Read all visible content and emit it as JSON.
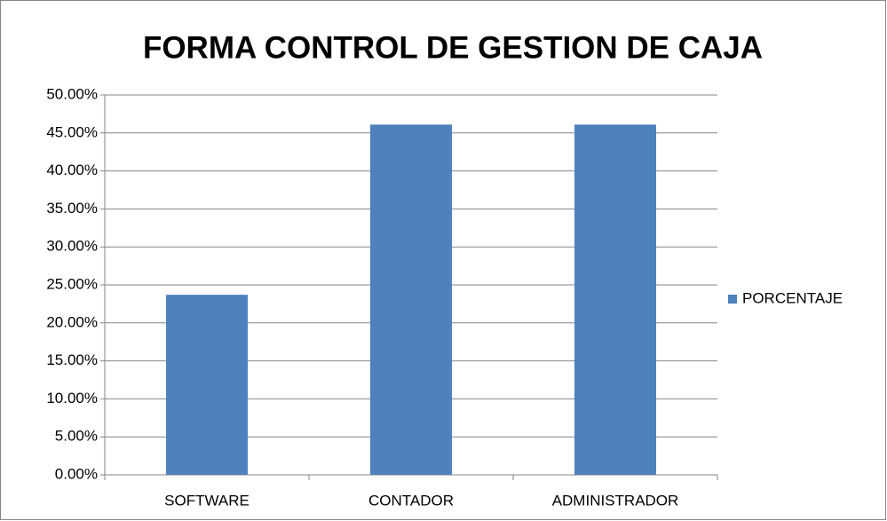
{
  "chart_data": {
    "type": "bar",
    "title": "FORMA CONTROL DE GESTION DE CAJA",
    "categories": [
      "SOFTWARE",
      "CONTADOR",
      "ADMINISTRADOR"
    ],
    "series": [
      {
        "name": "PORCENTAJE",
        "color": "#4f81bd",
        "values": [
          23.7,
          46.1,
          46.1
        ]
      }
    ],
    "ylim": [
      0,
      50
    ],
    "yticks": [
      {
        "value": 0,
        "label": "0.00%"
      },
      {
        "value": 5,
        "label": "5.00%"
      },
      {
        "value": 10,
        "label": "10.00%"
      },
      {
        "value": 15,
        "label": "15.00%"
      },
      {
        "value": 20,
        "label": "20.00%"
      },
      {
        "value": 25,
        "label": "25.00%"
      },
      {
        "value": 30,
        "label": "30.00%"
      },
      {
        "value": 35,
        "label": "35.00%"
      },
      {
        "value": 40,
        "label": "40.00%"
      },
      {
        "value": 45,
        "label": "45.00%"
      },
      {
        "value": 50,
        "label": "50.00%"
      }
    ],
    "grid": true,
    "legend": "right"
  }
}
